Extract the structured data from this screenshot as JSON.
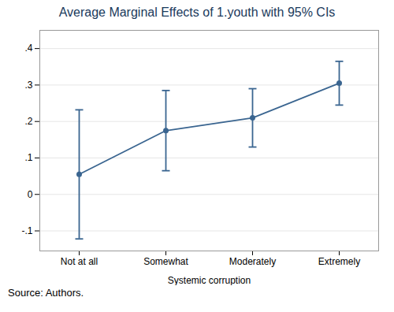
{
  "chart_data": {
    "type": "line",
    "title": "Average Marginal Effects of 1.youth with 95% CIs",
    "xlabel": "Systemic corruption",
    "categories": [
      "Not at all",
      "Somewhat",
      "Moderately",
      "Extremely"
    ],
    "values": [
      0.055,
      0.175,
      0.21,
      0.305
    ],
    "ci_lower": [
      -0.122,
      0.065,
      0.13,
      0.245
    ],
    "ci_upper": [
      0.232,
      0.285,
      0.29,
      0.365
    ],
    "color": "#3a6590",
    "marker": "circle",
    "ylim": [
      -0.155,
      0.45
    ],
    "yticks": [
      {
        "value": -0.1,
        "label": "-.1"
      },
      0,
      {
        "value": 0.1,
        "label": ".1"
      },
      {
        "value": 0.2,
        "label": ".2"
      },
      {
        "value": 0.3,
        "label": ".3"
      },
      {
        "value": 0.4,
        "label": ".4"
      }
    ],
    "grid": true,
    "caption": "Source: Authors."
  }
}
